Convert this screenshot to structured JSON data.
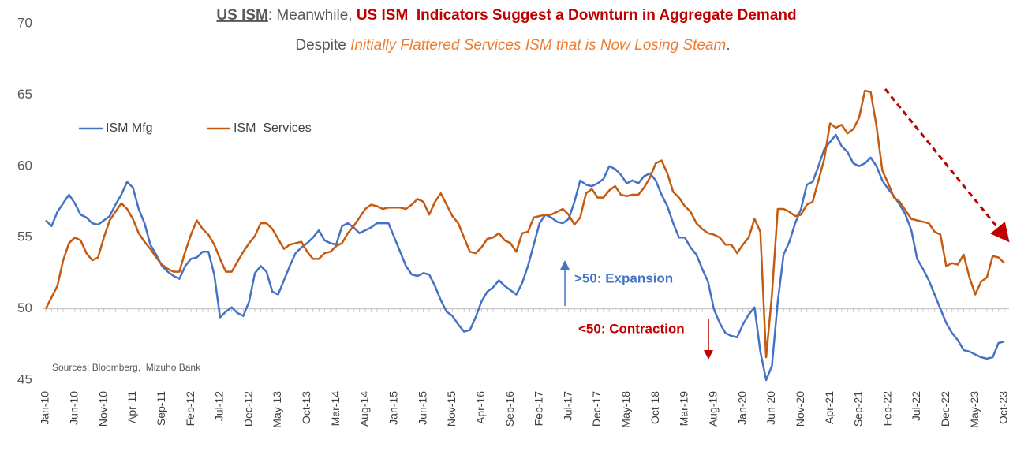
{
  "chart_data": {
    "type": "line",
    "title": [
      "US ISM",
      ": Meanwhile, ",
      "US ISM  Indicators Suggest a Downturn in Aggregate Demand"
    ],
    "subtitle": [
      "Despite ",
      "Initially Flattered Services ISM that is Now Losing Steam",
      "."
    ],
    "annotations": [
      ">50: Expansion",
      "<50: Contraction",
      "Sources: Bloomberg,  Mizuho Bank"
    ],
    "categories": [
      "Jan-10",
      null,
      null,
      null,
      null,
      "Jun-10",
      null,
      null,
      null,
      null,
      "Nov-10",
      null,
      null,
      null,
      null,
      "Apr-11",
      null,
      null,
      null,
      null,
      "Sep-11",
      null,
      null,
      null,
      null,
      "Feb-12",
      null,
      null,
      null,
      null,
      "Jul-12",
      null,
      null,
      null,
      null,
      "Dec-12",
      null,
      null,
      null,
      null,
      "May-13",
      null,
      null,
      null,
      null,
      "Oct-13",
      null,
      null,
      null,
      null,
      "Mar-14",
      null,
      null,
      null,
      null,
      "Aug-14",
      null,
      null,
      null,
      null,
      "Jan-15",
      null,
      null,
      null,
      null,
      "Jun-15",
      null,
      null,
      null,
      null,
      "Nov-15",
      null,
      null,
      null,
      null,
      "Apr-16",
      null,
      null,
      null,
      null,
      "Sep-16",
      null,
      null,
      null,
      null,
      "Feb-17",
      null,
      null,
      null,
      null,
      "Jul-17",
      null,
      null,
      null,
      null,
      "Dec-17",
      null,
      null,
      null,
      null,
      "May-18",
      null,
      null,
      null,
      null,
      "Oct-18",
      null,
      null,
      null,
      null,
      "Mar-19",
      null,
      null,
      null,
      null,
      "Aug-19",
      null,
      null,
      null,
      null,
      "Jan-20",
      null,
      null,
      null,
      null,
      "Jun-20",
      null,
      null,
      null,
      null,
      "Nov-20",
      null,
      null,
      null,
      null,
      "Apr-21",
      null,
      null,
      null,
      null,
      "Sep-21",
      null,
      null,
      null,
      null,
      "Feb-22",
      null,
      null,
      null,
      null,
      "Jul-22",
      null,
      null,
      null,
      null,
      "Dec-22",
      null,
      null,
      null,
      null,
      "May-23",
      null,
      null,
      null,
      null,
      "Oct-23"
    ],
    "series": [
      {
        "name": "ISM Mfg",
        "color": "#4472c4",
        "values": [
          56.2,
          55.8,
          56.8,
          57.4,
          58.0,
          57.4,
          56.6,
          56.4,
          56.0,
          55.9,
          56.2,
          56.5,
          57.3,
          58.0,
          58.9,
          58.5,
          57.0,
          56.0,
          54.5,
          53.8,
          53.0,
          52.6,
          52.3,
          52.1,
          53.0,
          53.5,
          53.6,
          54.0,
          54.0,
          52.4,
          49.4,
          49.8,
          50.1,
          49.7,
          49.5,
          50.5,
          52.5,
          53.0,
          52.6,
          51.2,
          51.0,
          52.0,
          53.0,
          53.9,
          54.3,
          54.6,
          55.0,
          55.5,
          54.8,
          54.6,
          54.5,
          55.8,
          56.0,
          55.7,
          55.3,
          55.5,
          55.7,
          56.0,
          56.0,
          56.0,
          55.0,
          54.0,
          53.0,
          52.4,
          52.3,
          52.5,
          52.4,
          51.6,
          50.6,
          49.8,
          49.5,
          48.9,
          48.4,
          48.5,
          49.4,
          50.5,
          51.2,
          51.5,
          52.0,
          51.6,
          51.3,
          51.0,
          51.8,
          53.0,
          54.5,
          56.0,
          56.6,
          56.4,
          56.1,
          56.0,
          56.3,
          57.5,
          59.0,
          58.7,
          58.6,
          58.8,
          59.1,
          60.0,
          59.8,
          59.4,
          58.8,
          59.0,
          58.8,
          59.3,
          59.5,
          59.0,
          58.0,
          57.2,
          56.0,
          55.0,
          55.0,
          54.3,
          53.8,
          52.8,
          51.9,
          50.0,
          49.0,
          48.3,
          48.1,
          48.0,
          48.9,
          49.6,
          50.1,
          47.0,
          45.0,
          46.0,
          50.5,
          53.8,
          54.7,
          56.0,
          57.0,
          58.7,
          58.9,
          60.0,
          61.2,
          61.7,
          62.2,
          61.4,
          61.0,
          60.2,
          60.0,
          60.2,
          60.6,
          60.0,
          59.0,
          58.4,
          57.9,
          57.3,
          56.6,
          55.5,
          53.5,
          52.8,
          52.0,
          51.0,
          50.0,
          49.0,
          48.3,
          47.8,
          47.1,
          47.0,
          46.8,
          46.6,
          46.5,
          46.6,
          47.6,
          47.7
        ]
      },
      {
        "name": "ISM  Services",
        "color": "#c55a11",
        "values": [
          50.0,
          50.8,
          51.6,
          53.4,
          54.6,
          55.0,
          54.8,
          53.9,
          53.4,
          53.6,
          55.0,
          56.2,
          56.8,
          57.4,
          57.0,
          56.3,
          55.3,
          54.7,
          54.2,
          53.6,
          53.1,
          52.8,
          52.6,
          52.6,
          54.0,
          55.2,
          56.2,
          55.6,
          55.2,
          54.5,
          53.5,
          52.6,
          52.6,
          53.3,
          54.0,
          54.6,
          55.1,
          56.0,
          56.0,
          55.6,
          54.9,
          54.2,
          54.5,
          54.6,
          54.7,
          54.0,
          53.5,
          53.5,
          53.9,
          54.0,
          54.4,
          54.6,
          55.3,
          55.8,
          56.4,
          57.0,
          57.3,
          57.2,
          57.0,
          57.1,
          57.1,
          57.1,
          57.0,
          57.3,
          57.7,
          57.5,
          56.6,
          57.5,
          58.1,
          57.3,
          56.5,
          56.0,
          55.0,
          54.0,
          53.9,
          54.3,
          54.9,
          55.0,
          55.3,
          54.8,
          54.6,
          54.0,
          55.3,
          55.4,
          56.4,
          56.5,
          56.6,
          56.6,
          56.8,
          57.0,
          56.6,
          55.9,
          56.4,
          58.1,
          58.4,
          57.8,
          57.8,
          58.3,
          58.6,
          58.0,
          57.9,
          58.0,
          58.0,
          58.5,
          59.2,
          60.2,
          60.4,
          59.5,
          58.2,
          57.8,
          57.2,
          56.8,
          56.0,
          55.6,
          55.3,
          55.2,
          55.0,
          54.5,
          54.5,
          53.9,
          54.5,
          55.0,
          56.3,
          55.4,
          46.6,
          51.0,
          57.0,
          57.0,
          56.8,
          56.5,
          56.6,
          57.3,
          57.5,
          59.0,
          60.5,
          63.0,
          62.7,
          62.9,
          62.3,
          62.6,
          63.4,
          65.3,
          65.2,
          62.8,
          59.7,
          58.8,
          57.8,
          57.5,
          56.9,
          56.3,
          56.2,
          56.1,
          56.0,
          55.4,
          55.2,
          53.0,
          53.2,
          53.1,
          53.8,
          52.2,
          51.0,
          51.9,
          52.2,
          53.7,
          53.6,
          53.2
        ]
      }
    ],
    "ylim": [
      45,
      70
    ],
    "yticks": [
      45,
      50,
      55,
      60,
      65,
      70
    ],
    "xaxis_crosses": 50,
    "grid": false,
    "legend": "upper left"
  }
}
